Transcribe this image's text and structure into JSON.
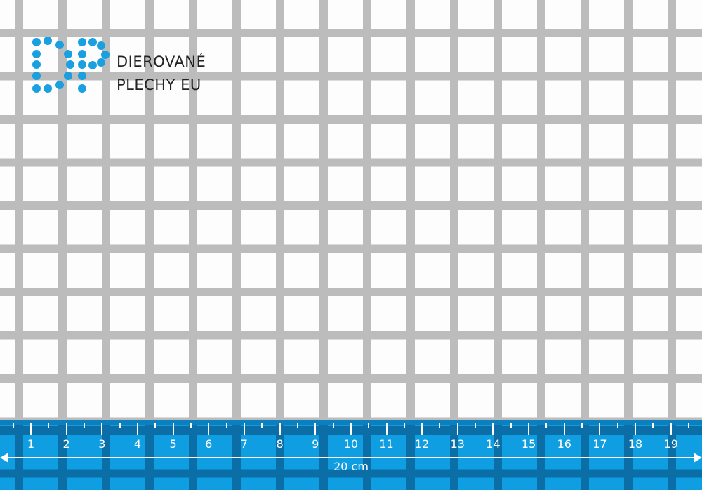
{
  "brand": {
    "line1": "DIEROVANÉ",
    "line2": "PLECHY EU",
    "logo_letters": "DP",
    "logo_color": "#1a9fe0"
  },
  "ruler": {
    "numbers": [
      "1",
      "2",
      "3",
      "4",
      "5",
      "6",
      "7",
      "8",
      "9",
      "10",
      "11",
      "12",
      "13",
      "14",
      "15",
      "16",
      "17",
      "18",
      "19"
    ],
    "length_label": "20 cm",
    "color": "#0f9ee2"
  },
  "sheet": {
    "pattern": "square perforation",
    "metal_color": "#bcbcbc"
  }
}
